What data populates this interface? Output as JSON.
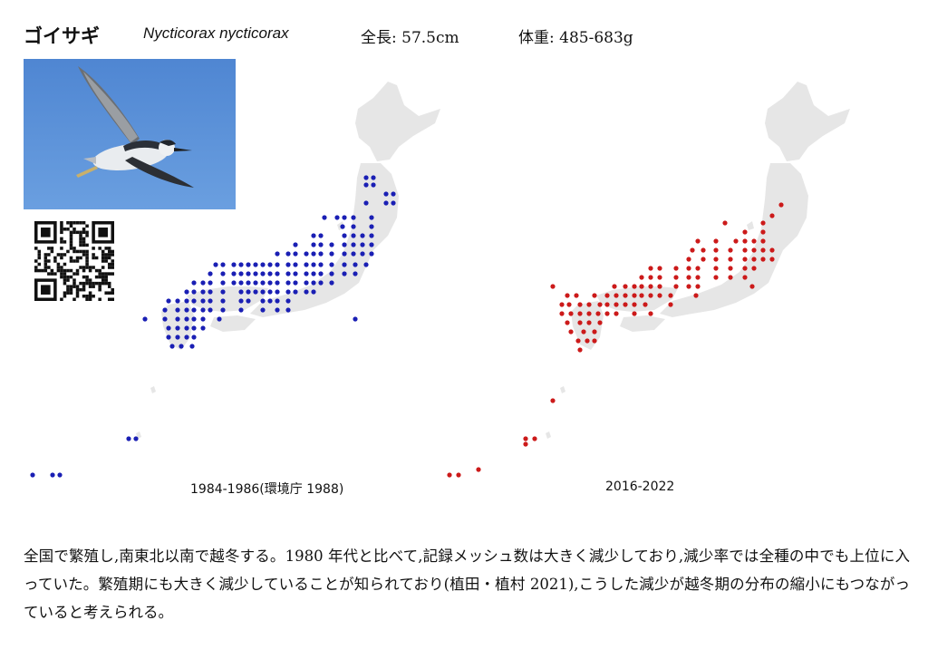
{
  "header": {
    "japanese_name": "ゴイサギ",
    "scientific_name": "Nycticorax nycticorax",
    "length": "全長: 57.5cm",
    "weight": "体重: 485-683g"
  },
  "photo": {
    "subject": "heron-in-flight",
    "sky_color": "#5b8fd6"
  },
  "maps": [
    {
      "caption": "1984-1986(環境庁 1988)",
      "dot_color": "#1a1fb4"
    },
    {
      "caption": "2016-2022",
      "dot_color": "#cc1a1a"
    }
  ],
  "land_color": "#e6e6e6",
  "description": "全国で繁殖し,南東北以南で越冬する。1980 年代と比べて,記録メッシュ数は大きく減少しており,減少率では全種の中でも上位に入っていた。繁殖期にも大きく減少していることが知られており(植田・植村 2021),こうした減少が越冬期の分布の縮小にもつながっていると考えられる。"
}
